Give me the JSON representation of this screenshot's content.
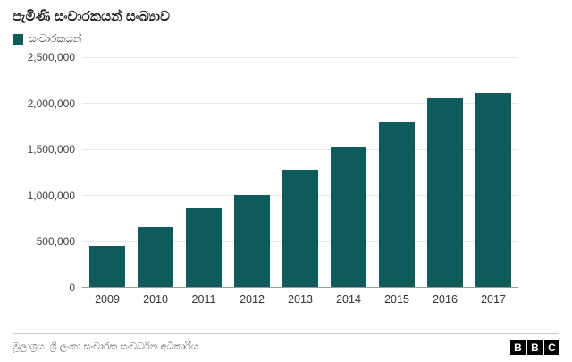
{
  "header": {
    "title": "පැමිණි සංචාරකයන් සංඛ්‍යාව"
  },
  "legend": {
    "label": "සංචාරකයන්"
  },
  "chart_data": {
    "type": "bar",
    "title": "පැමිණි සංචාරකයන් සංඛ්‍යාව",
    "series_name": "සංචාරකයන්",
    "categories": [
      "2009",
      "2010",
      "2011",
      "2012",
      "2013",
      "2014",
      "2015",
      "2016",
      "2017"
    ],
    "values": [
      450000,
      650000,
      855000,
      1000000,
      1275000,
      1530000,
      1800000,
      2050000,
      2115000
    ],
    "xlabel": "",
    "ylabel": "",
    "ylim": [
      0,
      2500000
    ],
    "ytick_interval": 500000,
    "ytick_labels": [
      "2,500,000",
      "2,000,000",
      "1,500,000",
      "1,000,000",
      "500,000",
      "0"
    ],
    "grid": true,
    "legend_position": "top-left",
    "bar_color": "#0f5b5c"
  },
  "footer": {
    "source": "මූලාශ්‍රය: ශ්‍රී ලංකා සංචාරක සංවර්ධන අධිකාරිය",
    "logo_letters": [
      "B",
      "B",
      "C"
    ]
  },
  "colors": {
    "accent": "#0f5b5c",
    "grid": "#e8e8e8",
    "axis": "#9a9a9a",
    "title_text": "#1a1a1a",
    "muted_text": "#555555"
  }
}
